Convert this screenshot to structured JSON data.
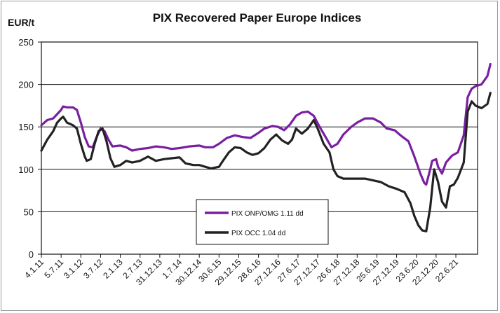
{
  "chart_data": {
    "type": "line",
    "title": "PIX Recovered Paper Europe Indices",
    "ylabel": "EUR/t",
    "xlabel": "",
    "ylim": [
      0,
      250
    ],
    "yticks": [
      0,
      50,
      100,
      150,
      200,
      250
    ],
    "grid": true,
    "legend_position": "lower-center",
    "x_tick_labels": [
      "4.1.11",
      "5.7.11",
      "3.1.12",
      "3.7.12",
      "2.1.13",
      "2.7.13",
      "31.12.13",
      "1.7.14",
      "30.12.14",
      "30.6.15",
      "29.12.15",
      "28.6.16",
      "27.12.16",
      "27.6.17",
      "27.12.17",
      "26.6.18",
      "27.12.18",
      "25.6.19",
      "27.12.19",
      "23.6.20",
      "22.12.20",
      "22.6.21"
    ],
    "x_max": 22.1,
    "series": [
      {
        "name": "PIX ONP/OMG 1.11 dd",
        "color": "#7a1fa2",
        "points": [
          [
            0,
            152
          ],
          [
            0.3,
            158
          ],
          [
            0.6,
            160
          ],
          [
            0.8,
            165
          ],
          [
            1.0,
            170
          ],
          [
            1.1,
            174
          ],
          [
            1.3,
            173
          ],
          [
            1.6,
            173
          ],
          [
            1.8,
            170
          ],
          [
            2.0,
            155
          ],
          [
            2.2,
            138
          ],
          [
            2.4,
            127
          ],
          [
            2.6,
            126
          ],
          [
            2.8,
            138
          ],
          [
            3.0,
            148
          ],
          [
            3.2,
            145
          ],
          [
            3.4,
            135
          ],
          [
            3.6,
            127
          ],
          [
            4.0,
            128
          ],
          [
            4.3,
            126
          ],
          [
            4.6,
            122
          ],
          [
            5.0,
            124
          ],
          [
            5.4,
            125
          ],
          [
            5.8,
            127
          ],
          [
            6.2,
            126
          ],
          [
            6.6,
            124
          ],
          [
            7.0,
            125
          ],
          [
            7.5,
            127
          ],
          [
            8.0,
            128
          ],
          [
            8.3,
            126
          ],
          [
            8.7,
            126
          ],
          [
            9.0,
            130
          ],
          [
            9.4,
            137
          ],
          [
            9.8,
            140
          ],
          [
            10.2,
            138
          ],
          [
            10.6,
            137
          ],
          [
            11.0,
            143
          ],
          [
            11.3,
            148
          ],
          [
            11.7,
            151
          ],
          [
            12.0,
            150
          ],
          [
            12.3,
            146
          ],
          [
            12.6,
            153
          ],
          [
            12.9,
            163
          ],
          [
            13.2,
            167
          ],
          [
            13.5,
            168
          ],
          [
            13.8,
            163
          ],
          [
            14.1,
            150
          ],
          [
            14.4,
            138
          ],
          [
            14.7,
            126
          ],
          [
            15.0,
            130
          ],
          [
            15.3,
            141
          ],
          [
            15.7,
            150
          ],
          [
            16.0,
            155
          ],
          [
            16.4,
            160
          ],
          [
            16.8,
            160
          ],
          [
            17.2,
            155
          ],
          [
            17.5,
            148
          ],
          [
            17.9,
            146
          ],
          [
            18.2,
            140
          ],
          [
            18.6,
            133
          ],
          [
            18.9,
            115
          ],
          [
            19.2,
            95
          ],
          [
            19.4,
            84
          ],
          [
            19.5,
            82
          ],
          [
            19.7,
            100
          ],
          [
            19.8,
            110
          ],
          [
            20.0,
            112
          ],
          [
            20.1,
            103
          ],
          [
            20.3,
            95
          ],
          [
            20.5,
            108
          ],
          [
            20.8,
            116
          ],
          [
            21.1,
            120
          ],
          [
            21.4,
            140
          ],
          [
            21.6,
            185
          ],
          [
            21.8,
            195
          ],
          [
            22.0,
            198
          ],
          [
            22.3,
            200
          ],
          [
            22.6,
            210
          ],
          [
            22.75,
            224
          ]
        ]
      },
      {
        "name": "PIX OCC 1.04 dd",
        "color": "#222222",
        "points": [
          [
            0,
            122
          ],
          [
            0.3,
            135
          ],
          [
            0.6,
            145
          ],
          [
            0.8,
            155
          ],
          [
            1.0,
            160
          ],
          [
            1.1,
            162
          ],
          [
            1.3,
            155
          ],
          [
            1.6,
            152
          ],
          [
            1.8,
            148
          ],
          [
            2.0,
            130
          ],
          [
            2.2,
            115
          ],
          [
            2.3,
            110
          ],
          [
            2.5,
            112
          ],
          [
            2.7,
            130
          ],
          [
            2.9,
            145
          ],
          [
            3.1,
            148
          ],
          [
            3.3,
            133
          ],
          [
            3.5,
            113
          ],
          [
            3.7,
            103
          ],
          [
            4.0,
            105
          ],
          [
            4.3,
            110
          ],
          [
            4.6,
            108
          ],
          [
            5.0,
            110
          ],
          [
            5.4,
            115
          ],
          [
            5.8,
            110
          ],
          [
            6.2,
            112
          ],
          [
            6.6,
            113
          ],
          [
            7.0,
            114
          ],
          [
            7.3,
            107
          ],
          [
            7.7,
            105
          ],
          [
            8.0,
            105
          ],
          [
            8.3,
            103
          ],
          [
            8.6,
            101
          ],
          [
            9.0,
            103
          ],
          [
            9.2,
            110
          ],
          [
            9.5,
            120
          ],
          [
            9.8,
            126
          ],
          [
            10.1,
            125
          ],
          [
            10.4,
            120
          ],
          [
            10.7,
            117
          ],
          [
            11.0,
            119
          ],
          [
            11.3,
            125
          ],
          [
            11.6,
            135
          ],
          [
            11.9,
            141
          ],
          [
            12.2,
            134
          ],
          [
            12.5,
            130
          ],
          [
            12.7,
            135
          ],
          [
            12.9,
            148
          ],
          [
            13.2,
            142
          ],
          [
            13.5,
            148
          ],
          [
            13.8,
            158
          ],
          [
            14.0,
            148
          ],
          [
            14.3,
            130
          ],
          [
            14.6,
            120
          ],
          [
            14.8,
            100
          ],
          [
            15.0,
            92
          ],
          [
            15.3,
            89
          ],
          [
            15.7,
            89
          ],
          [
            16.0,
            89
          ],
          [
            16.4,
            89
          ],
          [
            16.8,
            87
          ],
          [
            17.2,
            85
          ],
          [
            17.6,
            80
          ],
          [
            18.0,
            77
          ],
          [
            18.4,
            73
          ],
          [
            18.7,
            60
          ],
          [
            18.9,
            45
          ],
          [
            19.1,
            34
          ],
          [
            19.3,
            28
          ],
          [
            19.5,
            27
          ],
          [
            19.7,
            55
          ],
          [
            19.9,
            100
          ],
          [
            20.1,
            85
          ],
          [
            20.3,
            62
          ],
          [
            20.5,
            55
          ],
          [
            20.7,
            80
          ],
          [
            20.9,
            82
          ],
          [
            21.1,
            90
          ],
          [
            21.4,
            108
          ],
          [
            21.6,
            168
          ],
          [
            21.8,
            180
          ],
          [
            22.0,
            175
          ],
          [
            22.3,
            172
          ],
          [
            22.6,
            177
          ],
          [
            22.75,
            190
          ]
        ]
      }
    ]
  }
}
